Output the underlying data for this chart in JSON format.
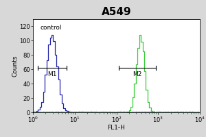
{
  "title": "A549",
  "xlabel": "FL1-H",
  "ylabel": "Counts",
  "xlim_log": [
    1.0,
    10000.0
  ],
  "ylim": [
    0,
    130
  ],
  "yticks": [
    0,
    20,
    40,
    60,
    80,
    100,
    120
  ],
  "control_label": "control",
  "m1_label": "M1",
  "m2_label": "M2",
  "control_color": "#2222AA",
  "sample_color": "#33CC33",
  "bg_color": "#ffffff",
  "outer_bg": "#d8d8d8",
  "control_peak_x_log": 0.46,
  "control_peak_sigma": 0.28,
  "sample_peak_x_log": 2.58,
  "sample_peak_sigma": 0.22,
  "n_points": 4000,
  "control_peak_height": 108,
  "sample_peak_height": 108,
  "m1_x_start": 1.3,
  "m1_x_end": 6.5,
  "m2_x_start": 115,
  "m2_x_end": 870,
  "marker_y": 62,
  "title_fontsize": 11,
  "label_fontsize": 6.5,
  "tick_fontsize": 6,
  "fig_width": 3.0,
  "fig_height": 2.0,
  "dpi": 100
}
